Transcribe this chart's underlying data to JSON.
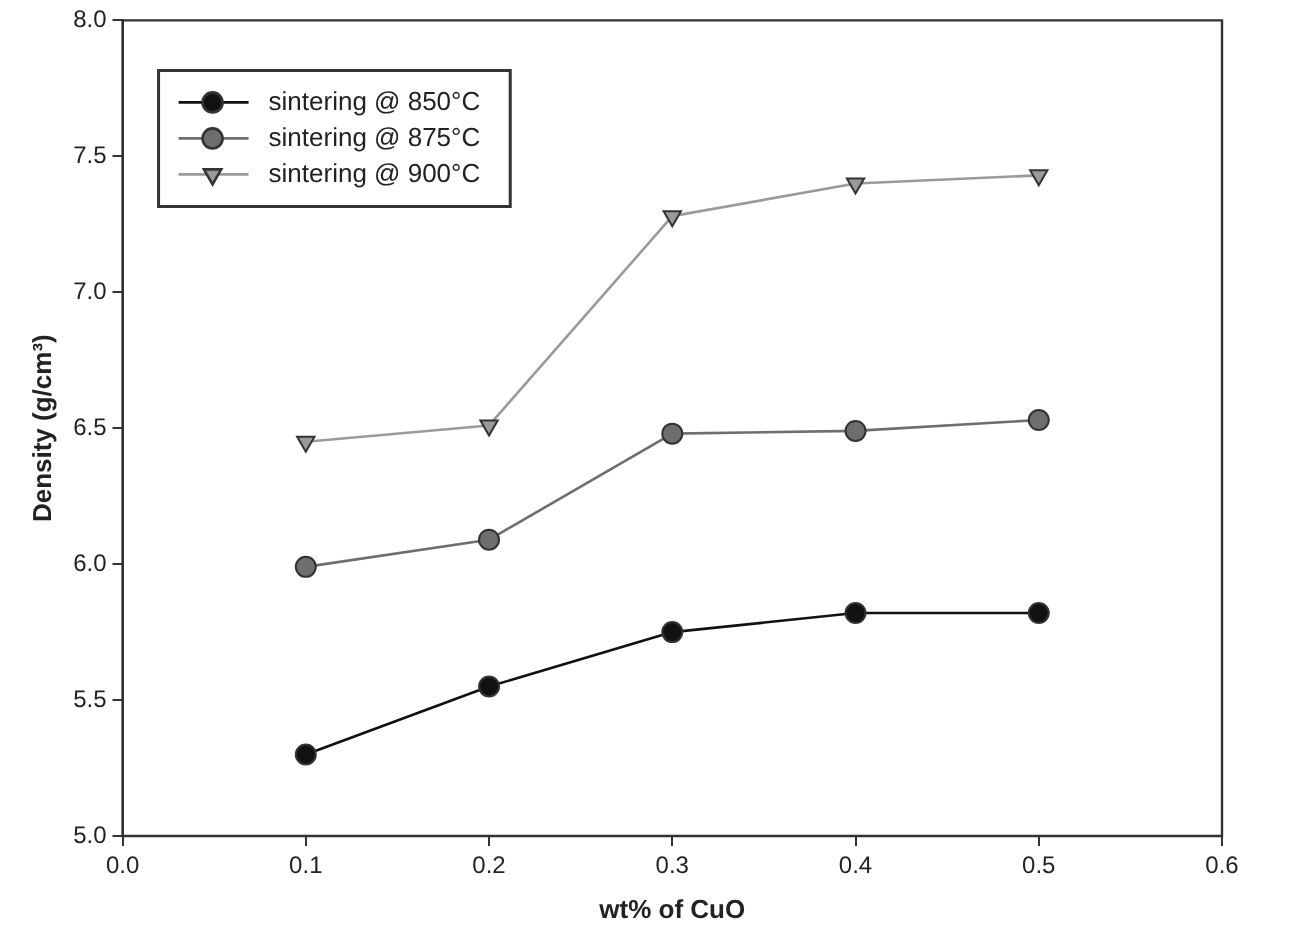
{
  "chart_data": {
    "type": "line",
    "xlabel": "wt% of CuO",
    "ylabel": "Density (g/cm³)",
    "x": [
      0.1,
      0.2,
      0.3,
      0.4,
      0.5
    ],
    "series": [
      {
        "name": "sintering @ 850°C",
        "color": "#111111",
        "marker": "circle",
        "values": [
          5.3,
          5.55,
          5.75,
          5.82,
          5.82
        ]
      },
      {
        "name": "sintering @ 875°C",
        "color": "#6e6e6e",
        "marker": "circle",
        "values": [
          5.99,
          6.09,
          6.48,
          6.49,
          6.53
        ]
      },
      {
        "name": "sintering @ 900°C",
        "color": "#9a9a9a",
        "marker": "triangle",
        "values": [
          6.45,
          6.51,
          7.28,
          7.4,
          7.43
        ]
      }
    ],
    "xlim": [
      0,
      0.6
    ],
    "xticks": [
      {
        "value": 0,
        "label": "0.0"
      },
      {
        "value": 0.1,
        "label": "0.1"
      },
      {
        "value": 0.2,
        "label": "0.2"
      },
      {
        "value": 0.3,
        "label": "0.3"
      },
      {
        "value": 0.4,
        "label": "0.4"
      },
      {
        "value": 0.5,
        "label": "0.5"
      },
      {
        "value": 0.6,
        "label": "0.6"
      }
    ],
    "ylim": [
      5,
      8
    ],
    "yticks": [
      {
        "value": 5,
        "label": "5.0"
      },
      {
        "value": 5.5,
        "label": "5.5"
      },
      {
        "value": 6,
        "label": "6.0"
      },
      {
        "value": 6.5,
        "label": "6.5"
      },
      {
        "value": 7,
        "label": "7.0"
      },
      {
        "value": 7.5,
        "label": "7.5"
      },
      {
        "value": 8,
        "label": "8.0"
      }
    ],
    "grid": false,
    "legend": "top left"
  }
}
